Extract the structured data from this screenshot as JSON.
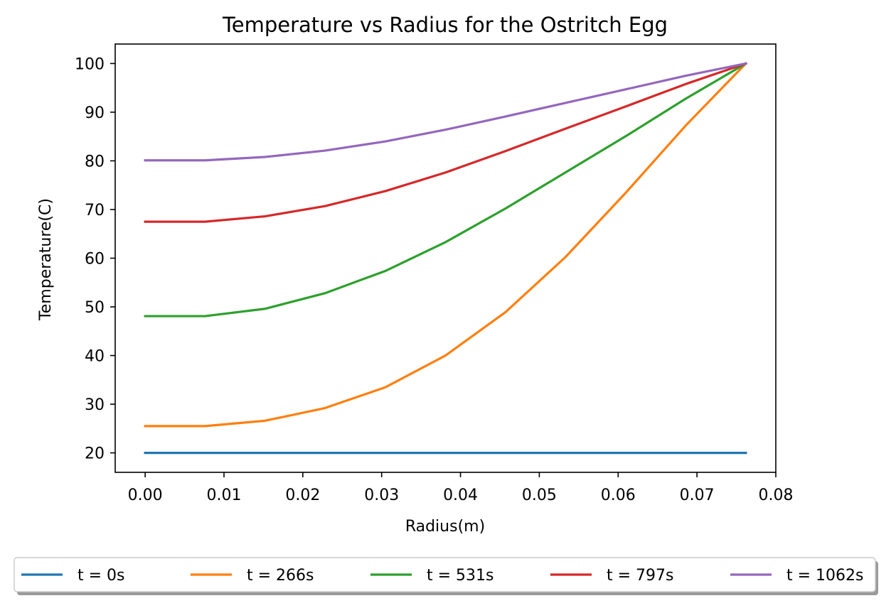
{
  "chart_data": {
    "type": "line",
    "title": "Temperature vs Radius for the Ostritch Egg",
    "xlabel": "Radius(m)",
    "ylabel": "Temperature(C)",
    "xlim": [
      -0.0038,
      0.08
    ],
    "ylim": [
      16,
      104
    ],
    "xticks": [
      "0.00",
      "0.01",
      "0.02",
      "0.03",
      "0.04",
      "0.05",
      "0.06",
      "0.07",
      "0.08"
    ],
    "yticks": [
      "20",
      "30",
      "40",
      "50",
      "60",
      "70",
      "80",
      "90",
      "100"
    ],
    "grid": false,
    "legend_position": "bottom-center",
    "x": [
      0,
      0.0076,
      0.0152,
      0.0228,
      0.0305,
      0.0381,
      0.0457,
      0.0533,
      0.061,
      0.0686,
      0.0762
    ],
    "series": [
      {
        "name": "t = 0s",
        "color": "#1f77b4",
        "values": [
          20,
          20,
          20,
          20,
          20,
          20,
          20,
          20,
          20,
          20,
          20
        ]
      },
      {
        "name": "t = 266s",
        "color": "#ff7f0e",
        "values": [
          25.5,
          25.5,
          26.6,
          29.2,
          33.5,
          40.0,
          48.9,
          60.2,
          73.5,
          87.3,
          100
        ]
      },
      {
        "name": "t = 531s",
        "color": "#2ca02c",
        "values": [
          48.1,
          48.1,
          49.6,
          52.8,
          57.4,
          63.3,
          70.2,
          77.6,
          85.1,
          92.8,
          100
        ]
      },
      {
        "name": "t = 797s",
        "color": "#d62728",
        "values": [
          67.5,
          67.5,
          68.6,
          70.7,
          73.8,
          77.6,
          82.0,
          86.6,
          91.2,
          95.8,
          100
        ]
      },
      {
        "name": "t = 1062s",
        "color": "#9467bd",
        "values": [
          80.1,
          80.1,
          80.8,
          82.1,
          84.0,
          86.4,
          89.1,
          91.9,
          94.7,
          97.5,
          100
        ]
      }
    ]
  }
}
